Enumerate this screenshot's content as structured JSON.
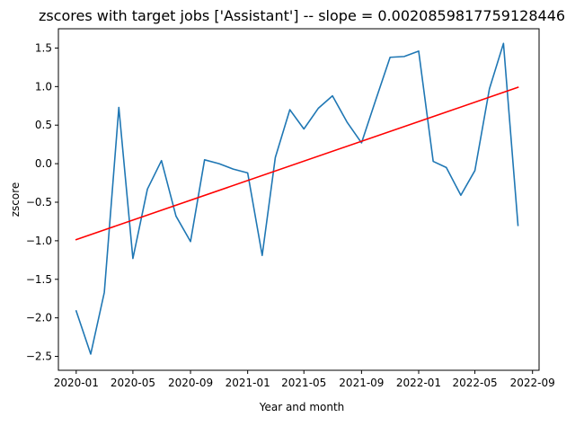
{
  "chart_data": {
    "type": "line",
    "title": "zscores with target jobs ['Assistant'] -- slope = 0.0020859817759128446",
    "xlabel": "Year and month",
    "ylabel": "zscore",
    "x_tick_labels": [
      "2020-01",
      "2020-05",
      "2020-09",
      "2021-01",
      "2021-05",
      "2021-09",
      "2022-01",
      "2022-05",
      "2022-09"
    ],
    "y_tick_labels": [
      "−2.5",
      "−2.0",
      "−1.5",
      "−1.0",
      "−0.5",
      "0.0",
      "0.5",
      "1.0",
      "1.5"
    ],
    "x_ticks": [
      "2020-01-01",
      "2020-05-01",
      "2020-09-01",
      "2021-01-01",
      "2021-05-01",
      "2021-09-01",
      "2022-01-01",
      "2022-05-01",
      "2022-09-01"
    ],
    "y_ticks": [
      -2.5,
      -2.0,
      -1.5,
      -1.0,
      -0.5,
      0.0,
      0.5,
      1.0,
      1.5
    ],
    "xlim": [
      "2019-11-24",
      "2022-09-15"
    ],
    "ylim": [
      -2.68,
      1.75
    ],
    "grid": false,
    "series": [
      {
        "color": "#1f77b4",
        "x": [
          "2020-01-01",
          "2020-02-01",
          "2020-03-01",
          "2020-04-01",
          "2020-05-01",
          "2020-06-01",
          "2020-07-01",
          "2020-08-01",
          "2020-09-01",
          "2020-10-01",
          "2020-11-01",
          "2020-12-01",
          "2021-01-01",
          "2021-02-01",
          "2021-03-01",
          "2021-04-01",
          "2021-05-01",
          "2021-06-01",
          "2021-07-01",
          "2021-08-01",
          "2021-09-01",
          "2021-10-01",
          "2021-11-01",
          "2021-12-01",
          "2022-01-01",
          "2022-02-01",
          "2022-03-01",
          "2022-04-01",
          "2022-05-01",
          "2022-06-01",
          "2022-07-01",
          "2022-08-01"
        ],
        "y": [
          -1.91,
          -2.47,
          -1.67,
          0.73,
          -1.23,
          -0.33,
          0.04,
          -0.68,
          -1.01,
          0.05,
          0.0,
          -0.07,
          -0.12,
          -1.19,
          0.08,
          0.7,
          0.45,
          0.72,
          0.88,
          0.54,
          0.27,
          0.82,
          1.38,
          1.39,
          1.46,
          0.03,
          -0.05,
          -0.41,
          -0.09,
          0.97,
          1.56,
          -0.8
        ]
      },
      {
        "color": "#ff0000",
        "x": [
          "2020-01-01",
          "2022-08-01"
        ],
        "y": [
          -0.985,
          0.99
        ]
      }
    ]
  }
}
